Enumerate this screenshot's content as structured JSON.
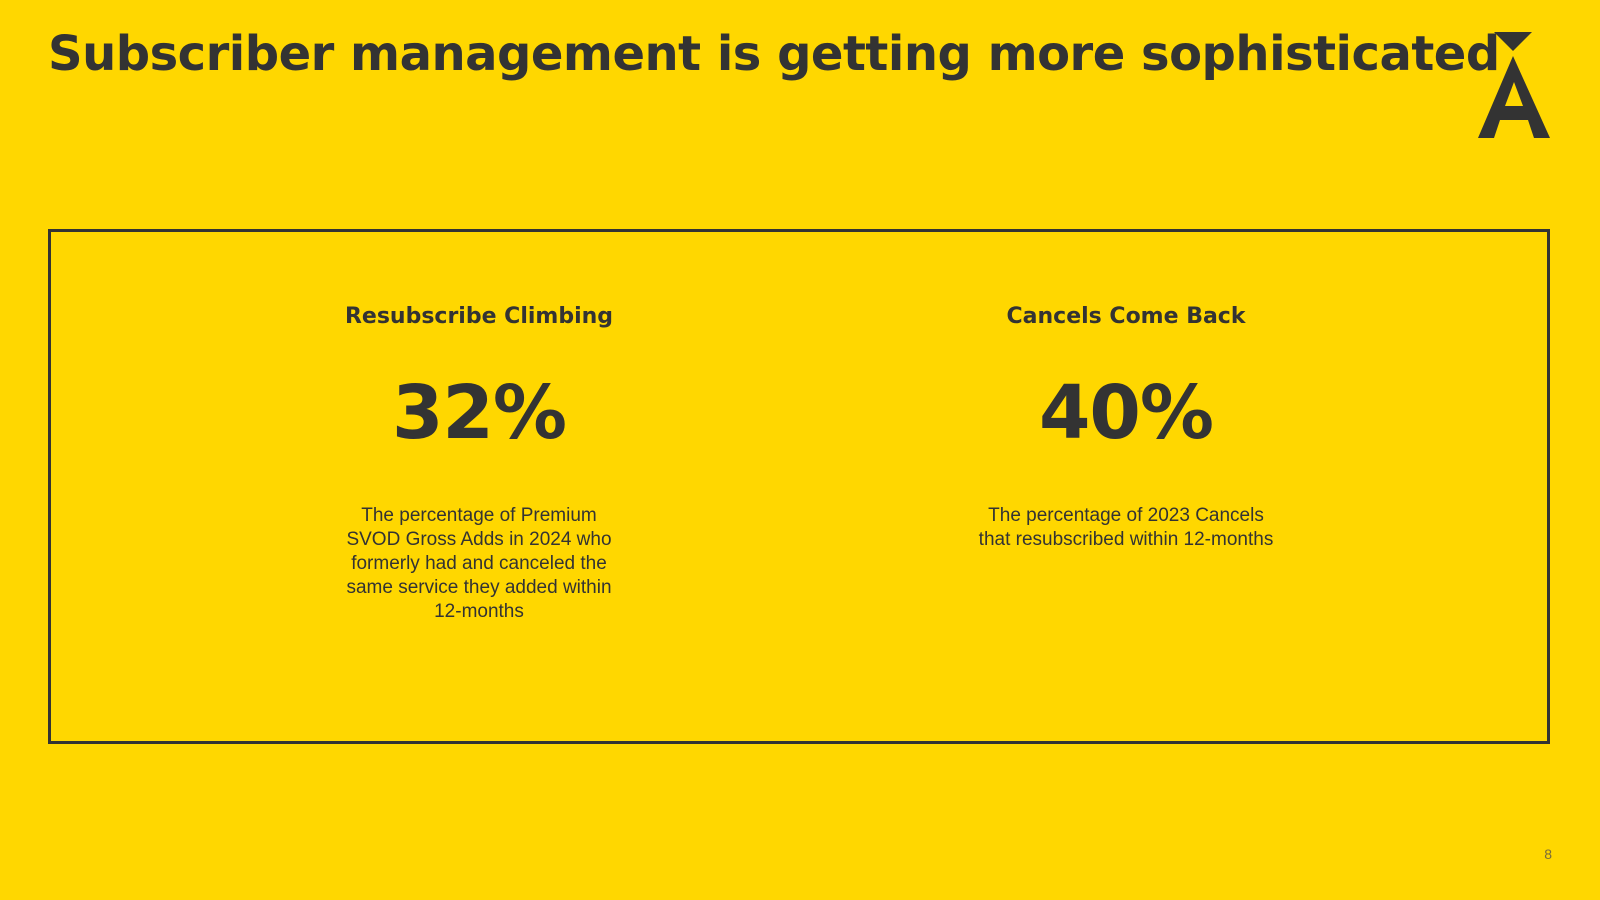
{
  "slide": {
    "title": "Subscriber management is getting more sophisticated",
    "background_color": "#FFD700",
    "text_color": "#333333",
    "logo": {
      "icon": "triangle-a-logo-icon"
    },
    "page_number": "8"
  },
  "stats": [
    {
      "heading": "Resubscribe Climbing",
      "value": "32%",
      "description": "The percentage of Premium SVOD Gross Adds in 2024 who formerly had and canceled the same service they added within 12-months"
    },
    {
      "heading": "Cancels Come Back",
      "value": "40%",
      "description": "The percentage of 2023 Cancels that resubscribed within 12-months"
    }
  ]
}
